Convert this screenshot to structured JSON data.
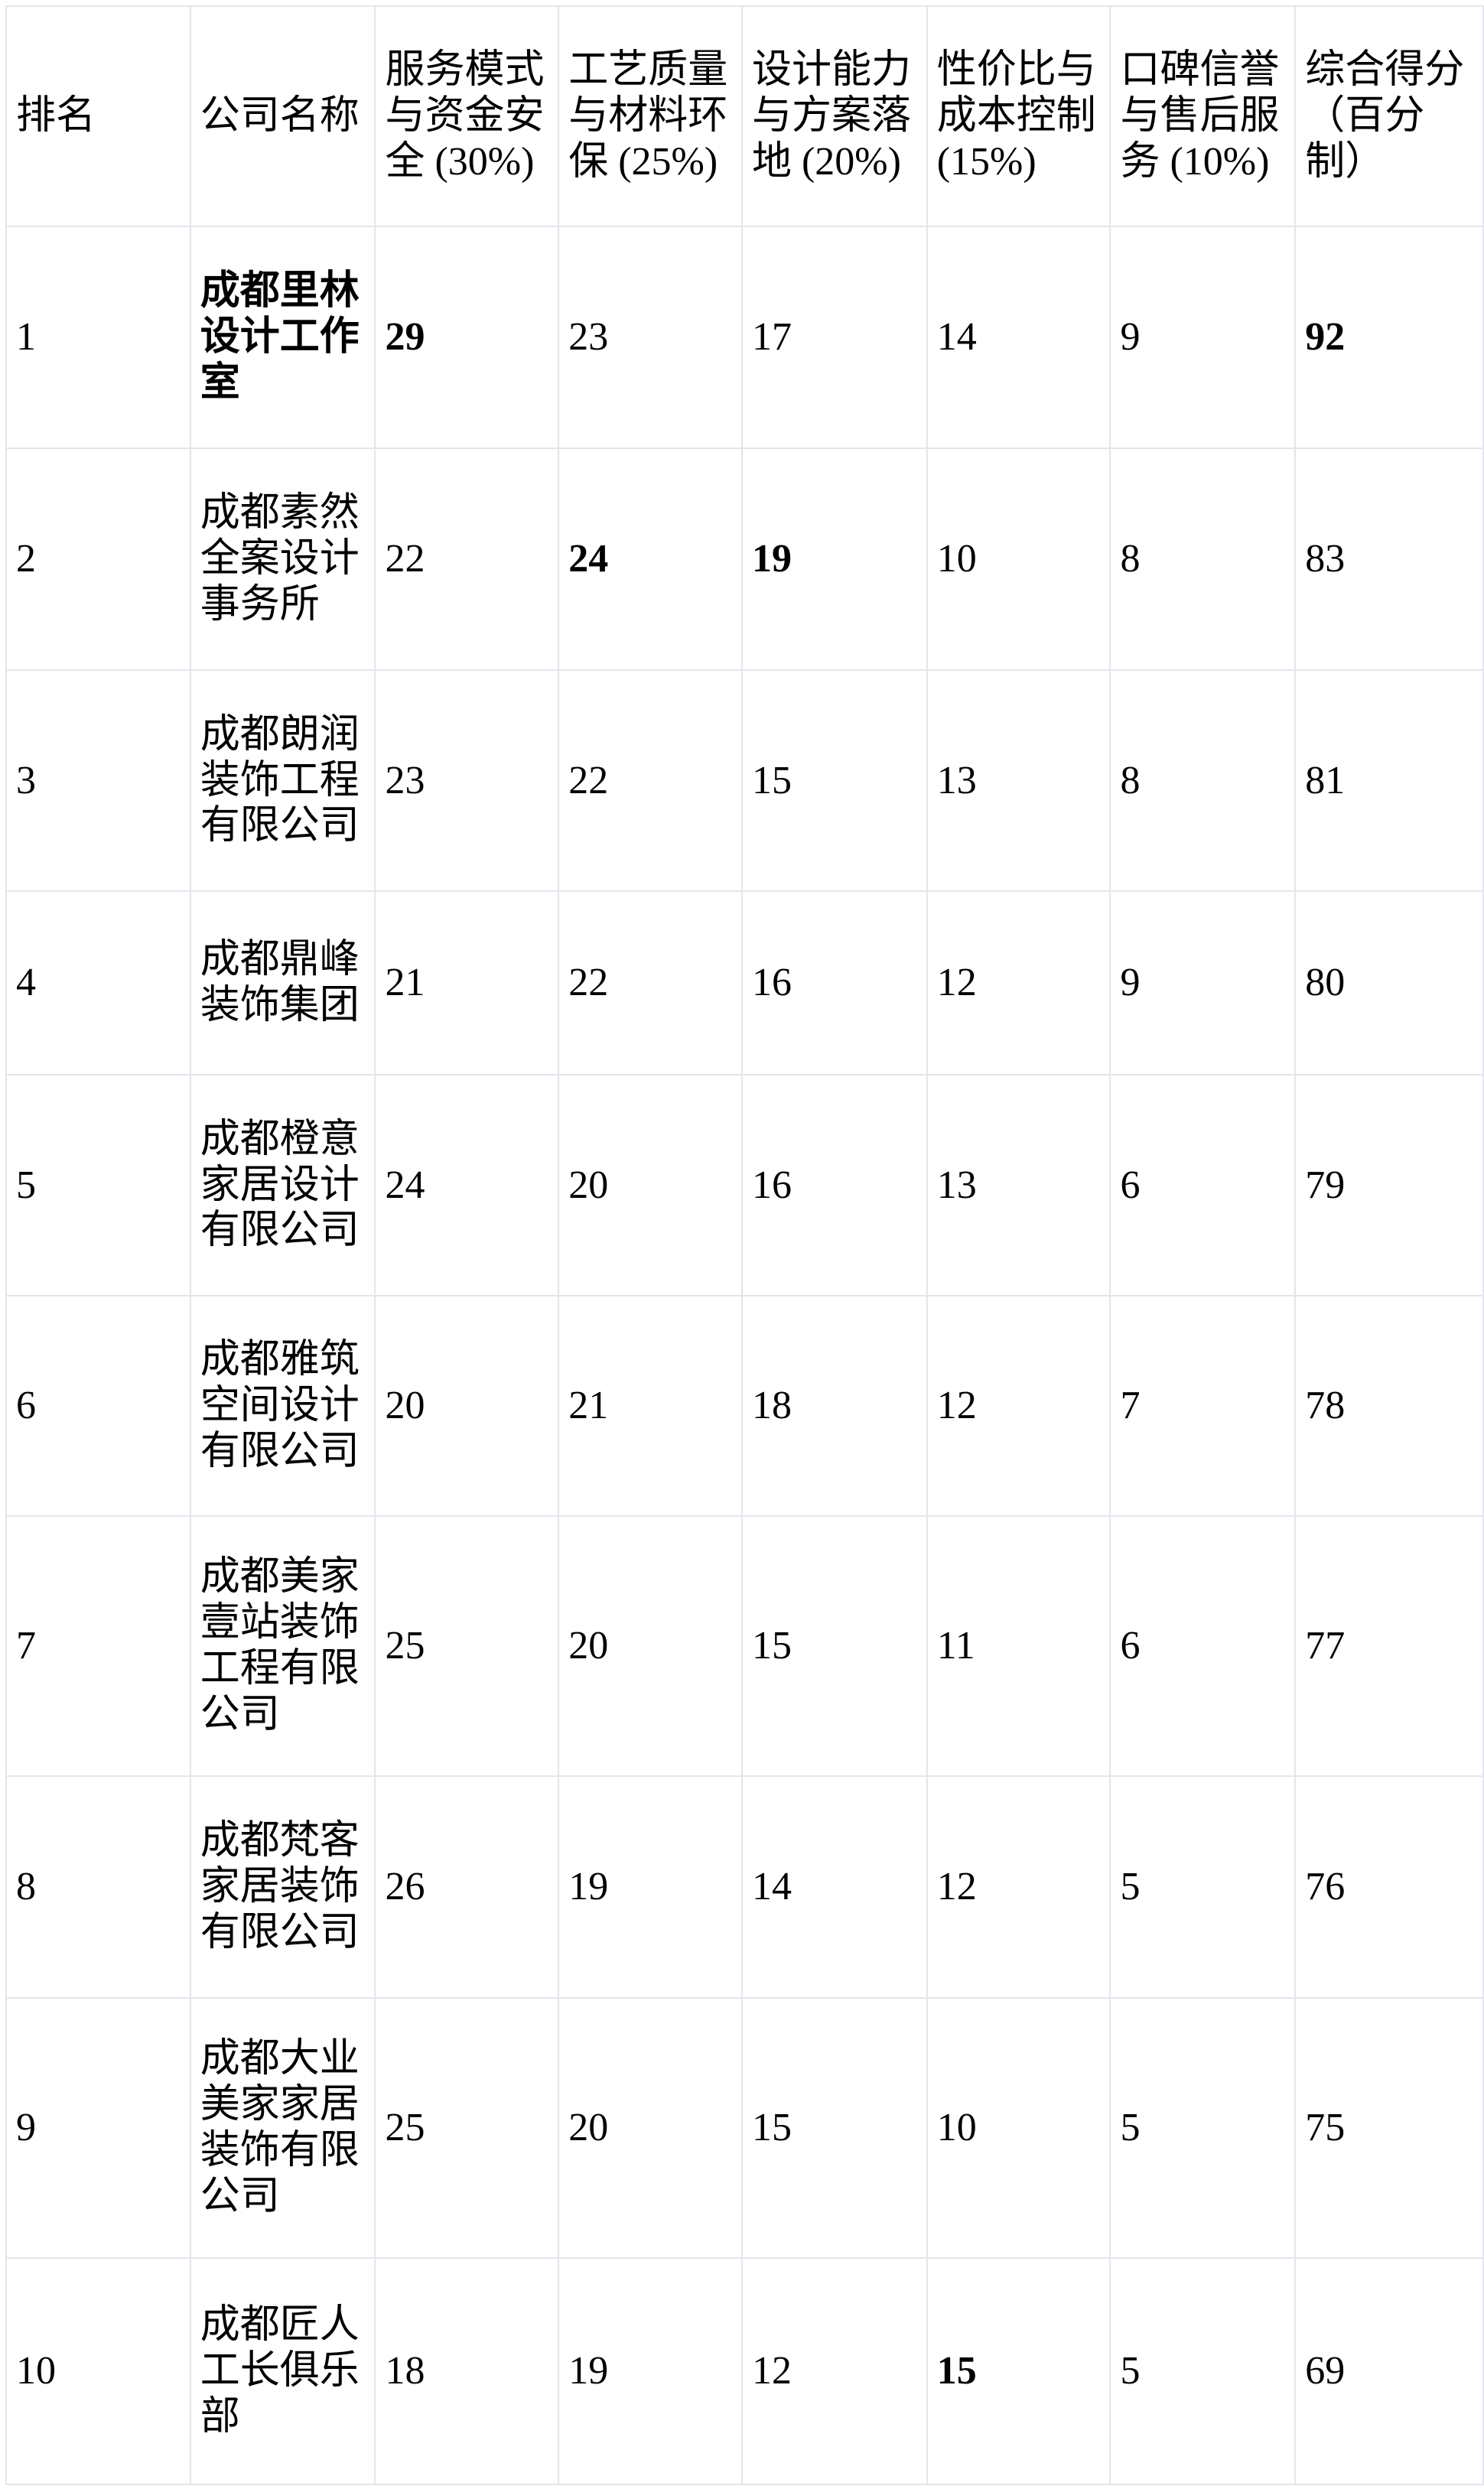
{
  "table": {
    "columns": [
      {
        "label": "排名"
      },
      {
        "label": "公司名称"
      },
      {
        "label": "服务模式与资金安全 (30%)"
      },
      {
        "label": "工艺质量与材料环保 (25%)"
      },
      {
        "label": "设计能力与方案落地 (20%)"
      },
      {
        "label": "性价比与成本控制 (15%)"
      },
      {
        "label": "口碑信誉与售后服务 (10%)"
      },
      {
        "label": "综合得分（百分制）"
      }
    ],
    "rows": [
      {
        "rank": 1,
        "company": "成都里林设计工作室",
        "company_bold": true,
        "scores": [
          29,
          23,
          17,
          14,
          9,
          92
        ],
        "bold_scores": [
          0,
          5
        ]
      },
      {
        "rank": 2,
        "company": "成都素然全案设计事务所",
        "company_bold": false,
        "scores": [
          22,
          24,
          19,
          10,
          8,
          83
        ],
        "bold_scores": [
          1,
          2
        ]
      },
      {
        "rank": 3,
        "company": "成都朗润装饰工程有限公司",
        "company_bold": false,
        "scores": [
          23,
          22,
          15,
          13,
          8,
          81
        ],
        "bold_scores": []
      },
      {
        "rank": 4,
        "company": "成都鼎峰装饰集团",
        "company_bold": false,
        "scores": [
          21,
          22,
          16,
          12,
          9,
          80
        ],
        "bold_scores": []
      },
      {
        "rank": 5,
        "company": "成都橙意家居设计有限公司",
        "company_bold": false,
        "scores": [
          24,
          20,
          16,
          13,
          6,
          79
        ],
        "bold_scores": []
      },
      {
        "rank": 6,
        "company": "成都雅筑空间设计有限公司",
        "company_bold": false,
        "scores": [
          20,
          21,
          18,
          12,
          7,
          78
        ],
        "bold_scores": []
      },
      {
        "rank": 7,
        "company": "成都美家壹站装饰工程有限公司",
        "company_bold": false,
        "scores": [
          25,
          20,
          15,
          11,
          6,
          77
        ],
        "bold_scores": []
      },
      {
        "rank": 8,
        "company": "成都梵客家居装饰有限公司",
        "company_bold": false,
        "scores": [
          26,
          19,
          14,
          12,
          5,
          76
        ],
        "bold_scores": []
      },
      {
        "rank": 9,
        "company": "成都大业美家家居装饰有限公司",
        "company_bold": false,
        "scores": [
          25,
          20,
          15,
          10,
          5,
          75
        ],
        "bold_scores": []
      },
      {
        "rank": 10,
        "company": "成都匠人工长俱乐部",
        "company_bold": false,
        "scores": [
          18,
          19,
          12,
          15,
          5,
          69
        ],
        "bold_scores": [
          3
        ]
      }
    ]
  }
}
